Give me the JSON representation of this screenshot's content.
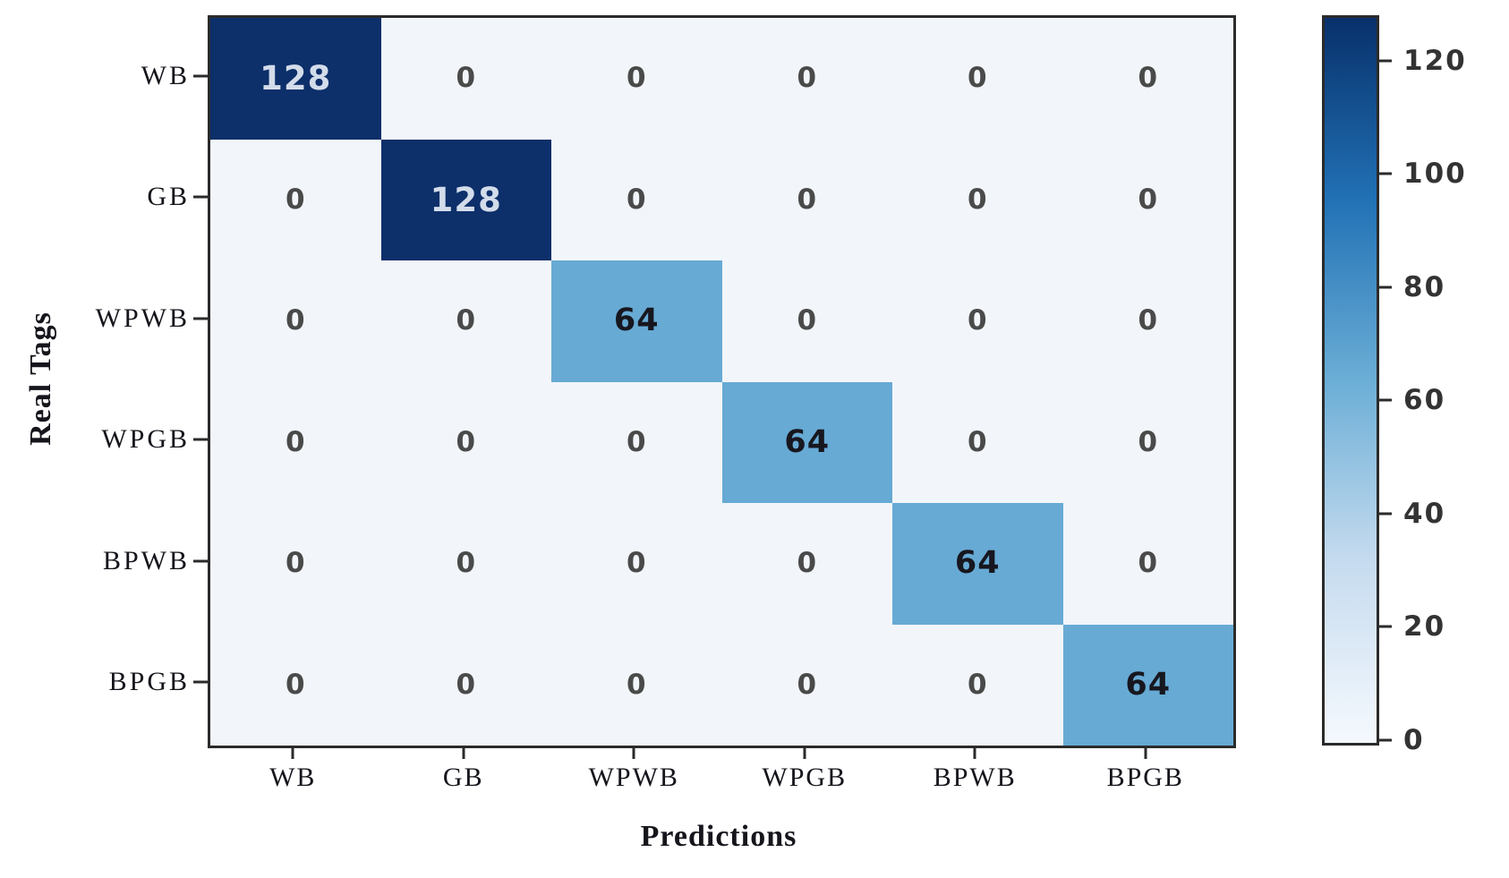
{
  "figure": {
    "xlabel": "Predictions",
    "ylabel": "Real Tags"
  },
  "chart_data": {
    "type": "heatmap",
    "title": "",
    "xlabel": "Predictions",
    "ylabel": "Real Tags",
    "categories": [
      "WB",
      "GB",
      "WPWB",
      "WPGB",
      "BPWB",
      "BPGB"
    ],
    "x_categories": [
      "WB",
      "GB",
      "WPWB",
      "WPGB",
      "BPWB",
      "BPGB"
    ],
    "matrix": [
      [
        128,
        0,
        0,
        0,
        0,
        0
      ],
      [
        0,
        128,
        0,
        0,
        0,
        0
      ],
      [
        0,
        0,
        64,
        0,
        0,
        0
      ],
      [
        0,
        0,
        0,
        64,
        0,
        0
      ],
      [
        0,
        0,
        0,
        0,
        64,
        0
      ],
      [
        0,
        0,
        0,
        0,
        0,
        64
      ]
    ],
    "vmin": 0,
    "vmax": 128,
    "colormap": "Blues",
    "colorbar_ticks": [
      0,
      20,
      40,
      60,
      80,
      100,
      120
    ],
    "legend_position": "right-colorbar",
    "grid": false,
    "value_colors": {
      "0": "#f2f6fb",
      "64": "#67aad4",
      "128": "#0d2f6a"
    },
    "value_text_colors": {
      "0": "#4a4a4a",
      "64": "#17171f",
      "128": "#d3dcea"
    }
  }
}
